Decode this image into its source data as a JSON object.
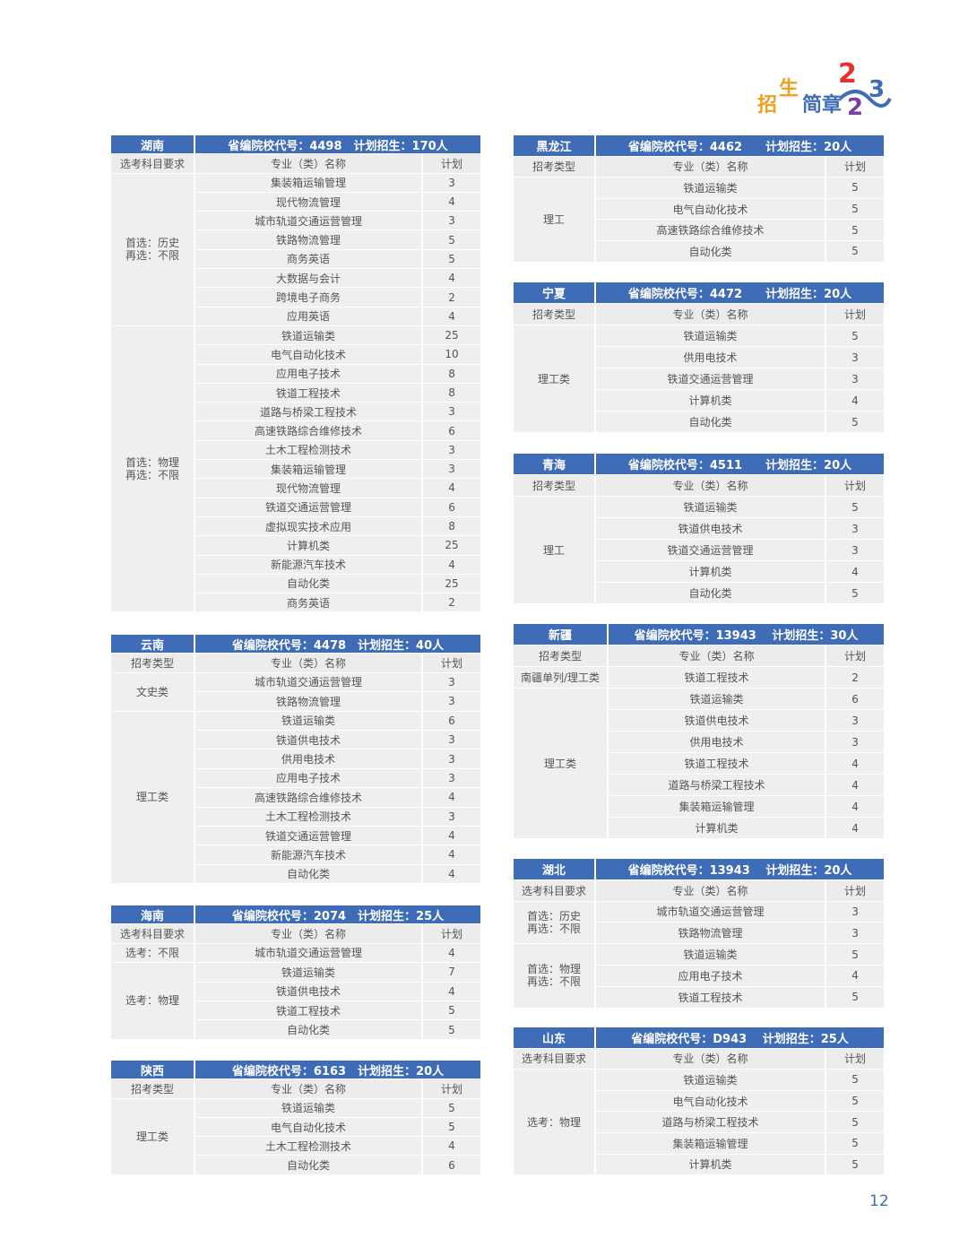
{
  "logo": {
    "text": "招生简章2023",
    "colors": [
      "#f0a020",
      "#3f6cb6",
      "#e53030",
      "#7a3fa0"
    ]
  },
  "page_number": "12",
  "accent_color": "#3f6cb6",
  "tables": [
    {
      "province": "湖南",
      "info": "省编院校代号：4498　计划招生：170人",
      "col1": "选考科目要求",
      "col2": "专业（类）名称",
      "col3": "计划",
      "groups": [
        {
          "label": "首选：历史\n再选：不限",
          "rows": [
            [
              "集装箱运输管理",
              "3"
            ],
            [
              "现代物流管理",
              "4"
            ],
            [
              "城市轨道交通运营管理",
              "3"
            ],
            [
              "铁路物流管理",
              "5"
            ],
            [
              "商务英语",
              "5"
            ],
            [
              "大数据与会计",
              "4"
            ],
            [
              "跨境电子商务",
              "2"
            ],
            [
              "应用英语",
              "4"
            ]
          ]
        },
        {
          "label": "首选：物理\n再选：不限",
          "rows": [
            [
              "铁道运输类",
              "25"
            ],
            [
              "电气自动化技术",
              "10"
            ],
            [
              "应用电子技术",
              "8"
            ],
            [
              "铁道工程技术",
              "8"
            ],
            [
              "道路与桥梁工程技术",
              "3"
            ],
            [
              "高速铁路综合维修技术",
              "6"
            ],
            [
              "土木工程检测技术",
              "3"
            ],
            [
              "集装箱运输管理",
              "3"
            ],
            [
              "现代物流管理",
              "4"
            ],
            [
              "铁道交通运营管理",
              "6"
            ],
            [
              "虚拟现实技术应用",
              "8"
            ],
            [
              "计算机类",
              "25"
            ],
            [
              "新能源汽车技术",
              "4"
            ],
            [
              "自动化类",
              "25"
            ],
            [
              "商务英语",
              "2"
            ]
          ]
        }
      ]
    },
    {
      "province": "云南",
      "info": "省编院校代号：4478　计划招生：40人",
      "col1": "招考类型",
      "col2": "专业（类）名称",
      "col3": "计划",
      "groups": [
        {
          "label": "文史类",
          "rows": [
            [
              "城市轨道交通运营管理",
              "3"
            ],
            [
              "铁路物流管理",
              "3"
            ]
          ]
        },
        {
          "label": "理工类",
          "rows": [
            [
              "铁道运输类",
              "6"
            ],
            [
              "铁道供电技术",
              "3"
            ],
            [
              "供用电技术",
              "3"
            ],
            [
              "应用电子技术",
              "3"
            ],
            [
              "高速铁路综合维修技术",
              "4"
            ],
            [
              "土木工程检测技术",
              "3"
            ],
            [
              "铁道交通运营管理",
              "4"
            ],
            [
              "新能源汽车技术",
              "4"
            ],
            [
              "自动化类",
              "4"
            ]
          ]
        }
      ]
    },
    {
      "province": "海南",
      "info": "省编院校代号：2074　计划招生：25人",
      "col1": "选考科目要求",
      "col2": "专业（类）名称",
      "col3": "计划",
      "groups": [
        {
          "label": "选考：不限",
          "rows": [
            [
              "城市轨道交通运营管理",
              "4"
            ]
          ]
        },
        {
          "label": "选考：物理",
          "rows": [
            [
              "铁道运输类",
              "7"
            ],
            [
              "铁道供电技术",
              "4"
            ],
            [
              "铁道工程技术",
              "5"
            ],
            [
              "自动化类",
              "5"
            ]
          ]
        }
      ]
    },
    {
      "province": "陕西",
      "info": "省编院校代号：6163　计划招生：20人",
      "col1": "招考类型",
      "col2": "专业（类）名称",
      "col3": "计划",
      "groups": [
        {
          "label": "理工类",
          "rows": [
            [
              "铁道运输类",
              "5"
            ],
            [
              "电气自动化技术",
              "5"
            ],
            [
              "土木工程检测技术",
              "4"
            ],
            [
              "自动化类",
              "6"
            ]
          ]
        }
      ]
    },
    {
      "province": "黑龙江",
      "info": "省编院校代号：4462　　计划招生：20人",
      "col1": "招考类型",
      "col2": "专业（类）名称",
      "col3": "计划",
      "groups": [
        {
          "label": "理工",
          "rows": [
            [
              "铁道运输类",
              "5"
            ],
            [
              "电气自动化技术",
              "5"
            ],
            [
              "高速铁路综合维修技术",
              "5"
            ],
            [
              "自动化类",
              "5"
            ]
          ]
        }
      ]
    },
    {
      "province": "宁夏",
      "info": "省编院校代号：4472　　计划招生：20人",
      "col1": "招考类型",
      "col2": "专业（类）名称",
      "col3": "计划",
      "groups": [
        {
          "label": "理工类",
          "rows": [
            [
              "铁道运输类",
              "5"
            ],
            [
              "供用电技术",
              "3"
            ],
            [
              "铁道交通运营管理",
              "3"
            ],
            [
              "计算机类",
              "4"
            ],
            [
              "自动化类",
              "5"
            ]
          ]
        }
      ]
    },
    {
      "province": "青海",
      "info": "省编院校代号：4511　　计划招生：20人",
      "col1": "招考类型",
      "col2": "专业（类）名称",
      "col3": "计划",
      "groups": [
        {
          "label": "理工",
          "rows": [
            [
              "铁道运输类",
              "5"
            ],
            [
              "铁道供电技术",
              "3"
            ],
            [
              "铁道交通运营管理",
              "3"
            ],
            [
              "计算机类",
              "4"
            ],
            [
              "自动化类",
              "5"
            ]
          ]
        }
      ]
    },
    {
      "province": "新疆",
      "info": "省编院校代号：13943　 计划招生：30人",
      "col1": "招考类型",
      "col2": "专业（类）名称",
      "col3": "计划",
      "groups": [
        {
          "label": "南疆单列/理工类",
          "rows": [
            [
              "铁道工程技术",
              "2"
            ]
          ]
        },
        {
          "label": "理工类",
          "rows": [
            [
              "铁道运输类",
              "6"
            ],
            [
              "铁道供电技术",
              "3"
            ],
            [
              "供用电技术",
              "3"
            ],
            [
              "铁道工程技术",
              "4"
            ],
            [
              "道路与桥梁工程技术",
              "4"
            ],
            [
              "集装箱运输管理",
              "4"
            ],
            [
              "计算机类",
              "4"
            ]
          ]
        }
      ]
    },
    {
      "province": "湖北",
      "info": "省编院校代号：13943　 计划招生：20人",
      "col1": "选考科目要求",
      "col2": "专业（类）名称",
      "col3": "计划",
      "groups": [
        {
          "label": "首选：历史\n再选：不限",
          "rows": [
            [
              "城市轨道交通运营管理",
              "3"
            ],
            [
              "铁路物流管理",
              "3"
            ]
          ]
        },
        {
          "label": "首选：物理\n再选：不限",
          "rows": [
            [
              "铁道运输类",
              "5"
            ],
            [
              "应用电子技术",
              "4"
            ],
            [
              "铁道工程技术",
              "5"
            ]
          ]
        }
      ]
    },
    {
      "province": "山东",
      "info": "省编院校代号：D943　 计划招生：25人",
      "col1": "选考科目要求",
      "col2": "专业（类）名称",
      "col3": "计划",
      "groups": [
        {
          "label": "选考：物理",
          "rows": [
            [
              "铁道运输类",
              "5"
            ],
            [
              "电气自动化技术",
              "5"
            ],
            [
              "道路与桥梁工程技术",
              "5"
            ],
            [
              "集装箱运输管理",
              "5"
            ],
            [
              "计算机类",
              "5"
            ]
          ]
        }
      ]
    }
  ]
}
